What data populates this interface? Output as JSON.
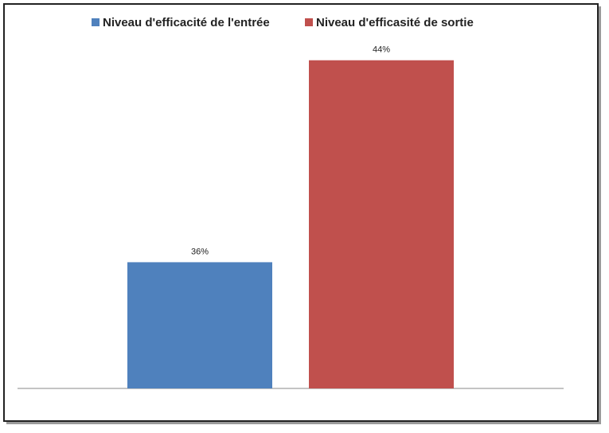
{
  "chart_data": {
    "type": "bar",
    "categories": [
      null
    ],
    "series": [
      {
        "name": "Niveau d'efficacité de l'entrée",
        "color": "#4f81bd",
        "values": [
          36
        ],
        "value_labels": [
          "36%"
        ]
      },
      {
        "name": "Niveau d'efficasité de sortie",
        "color": "#c0504d",
        "values": [
          44
        ],
        "value_labels": [
          "44%"
        ]
      }
    ],
    "ylim": [
      31,
      45
    ],
    "legend": "top"
  }
}
